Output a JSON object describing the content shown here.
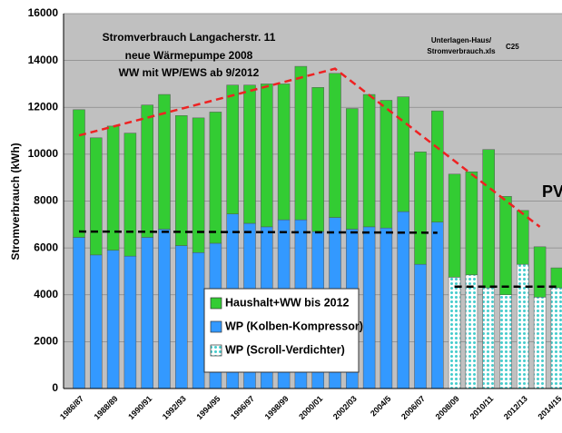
{
  "chart_data": {
    "type": "stacked_bar",
    "title_lines": [
      "Stromverbrauch Langacherstr. 11",
      "neue Wärmepumpe 2008",
      "WW mit WP/EWS ab 9/2012"
    ],
    "source_note": [
      "Unterlagen-Haus/",
      "Stromverbrauch.xls"
    ],
    "code": "C25",
    "side_label": "PV",
    "y_label": "Stromverbrauch (kWh)",
    "categories": [
      "1986/87",
      null,
      "1988/89",
      null,
      "1990/91",
      null,
      "1992/93",
      null,
      "1994/95",
      null,
      "1996/97",
      null,
      "1998/99",
      null,
      "2000/01",
      null,
      "2002/03",
      null,
      "2004/5",
      null,
      "2006/07",
      null,
      "2008/09",
      null,
      "2010/11",
      null,
      "2012/13",
      null,
      "2014/15"
    ],
    "series": [
      {
        "name": "WP (Kolben-Kompressor)",
        "color": "#3399ff",
        "values": [
          6450,
          5700,
          5900,
          5650,
          6450,
          6800,
          6100,
          5800,
          6200,
          7450,
          7050,
          6900,
          7200,
          7200,
          6700,
          7300,
          6800,
          6900,
          6850,
          7550,
          5300,
          7100,
          null,
          null,
          null,
          null,
          null,
          null,
          null
        ]
      },
      {
        "name": "WP (Scroll-Verdichter)",
        "color": "#44cccc",
        "values": [
          null,
          null,
          null,
          null,
          null,
          null,
          null,
          null,
          null,
          null,
          null,
          null,
          null,
          null,
          null,
          null,
          null,
          null,
          null,
          null,
          null,
          null,
          4750,
          4850,
          4300,
          4000,
          5300,
          3900,
          4300
        ]
      },
      {
        "name": "Haushalt+WW bis 2012",
        "color": "#33cc33",
        "values": [
          5450,
          5000,
          5300,
          5250,
          5650,
          5750,
          5550,
          5750,
          5600,
          5500,
          5900,
          6100,
          5800,
          6550,
          6150,
          6150,
          5150,
          5650,
          5450,
          4900,
          4800,
          4750,
          4400,
          4400,
          5900,
          4200,
          2300,
          2150,
          850
        ]
      }
    ],
    "legend_order": [
      2,
      0,
      1
    ],
    "trend_lines": [
      {
        "color": "#ee2222",
        "points": [
          [
            0,
            10800
          ],
          [
            15,
            13650
          ],
          [
            27,
            6900
          ]
        ]
      },
      {
        "color": "#000000",
        "points": [
          [
            0,
            6700
          ],
          [
            21,
            6650
          ]
        ]
      },
      {
        "color": "#000000",
        "points": [
          [
            22,
            4350
          ],
          [
            28,
            4350
          ]
        ]
      }
    ],
    "ylim": [
      0,
      16000
    ],
    "yticks": [
      0,
      2000,
      4000,
      6000,
      8000,
      10000,
      12000,
      14000,
      16000
    ],
    "grid": true
  }
}
